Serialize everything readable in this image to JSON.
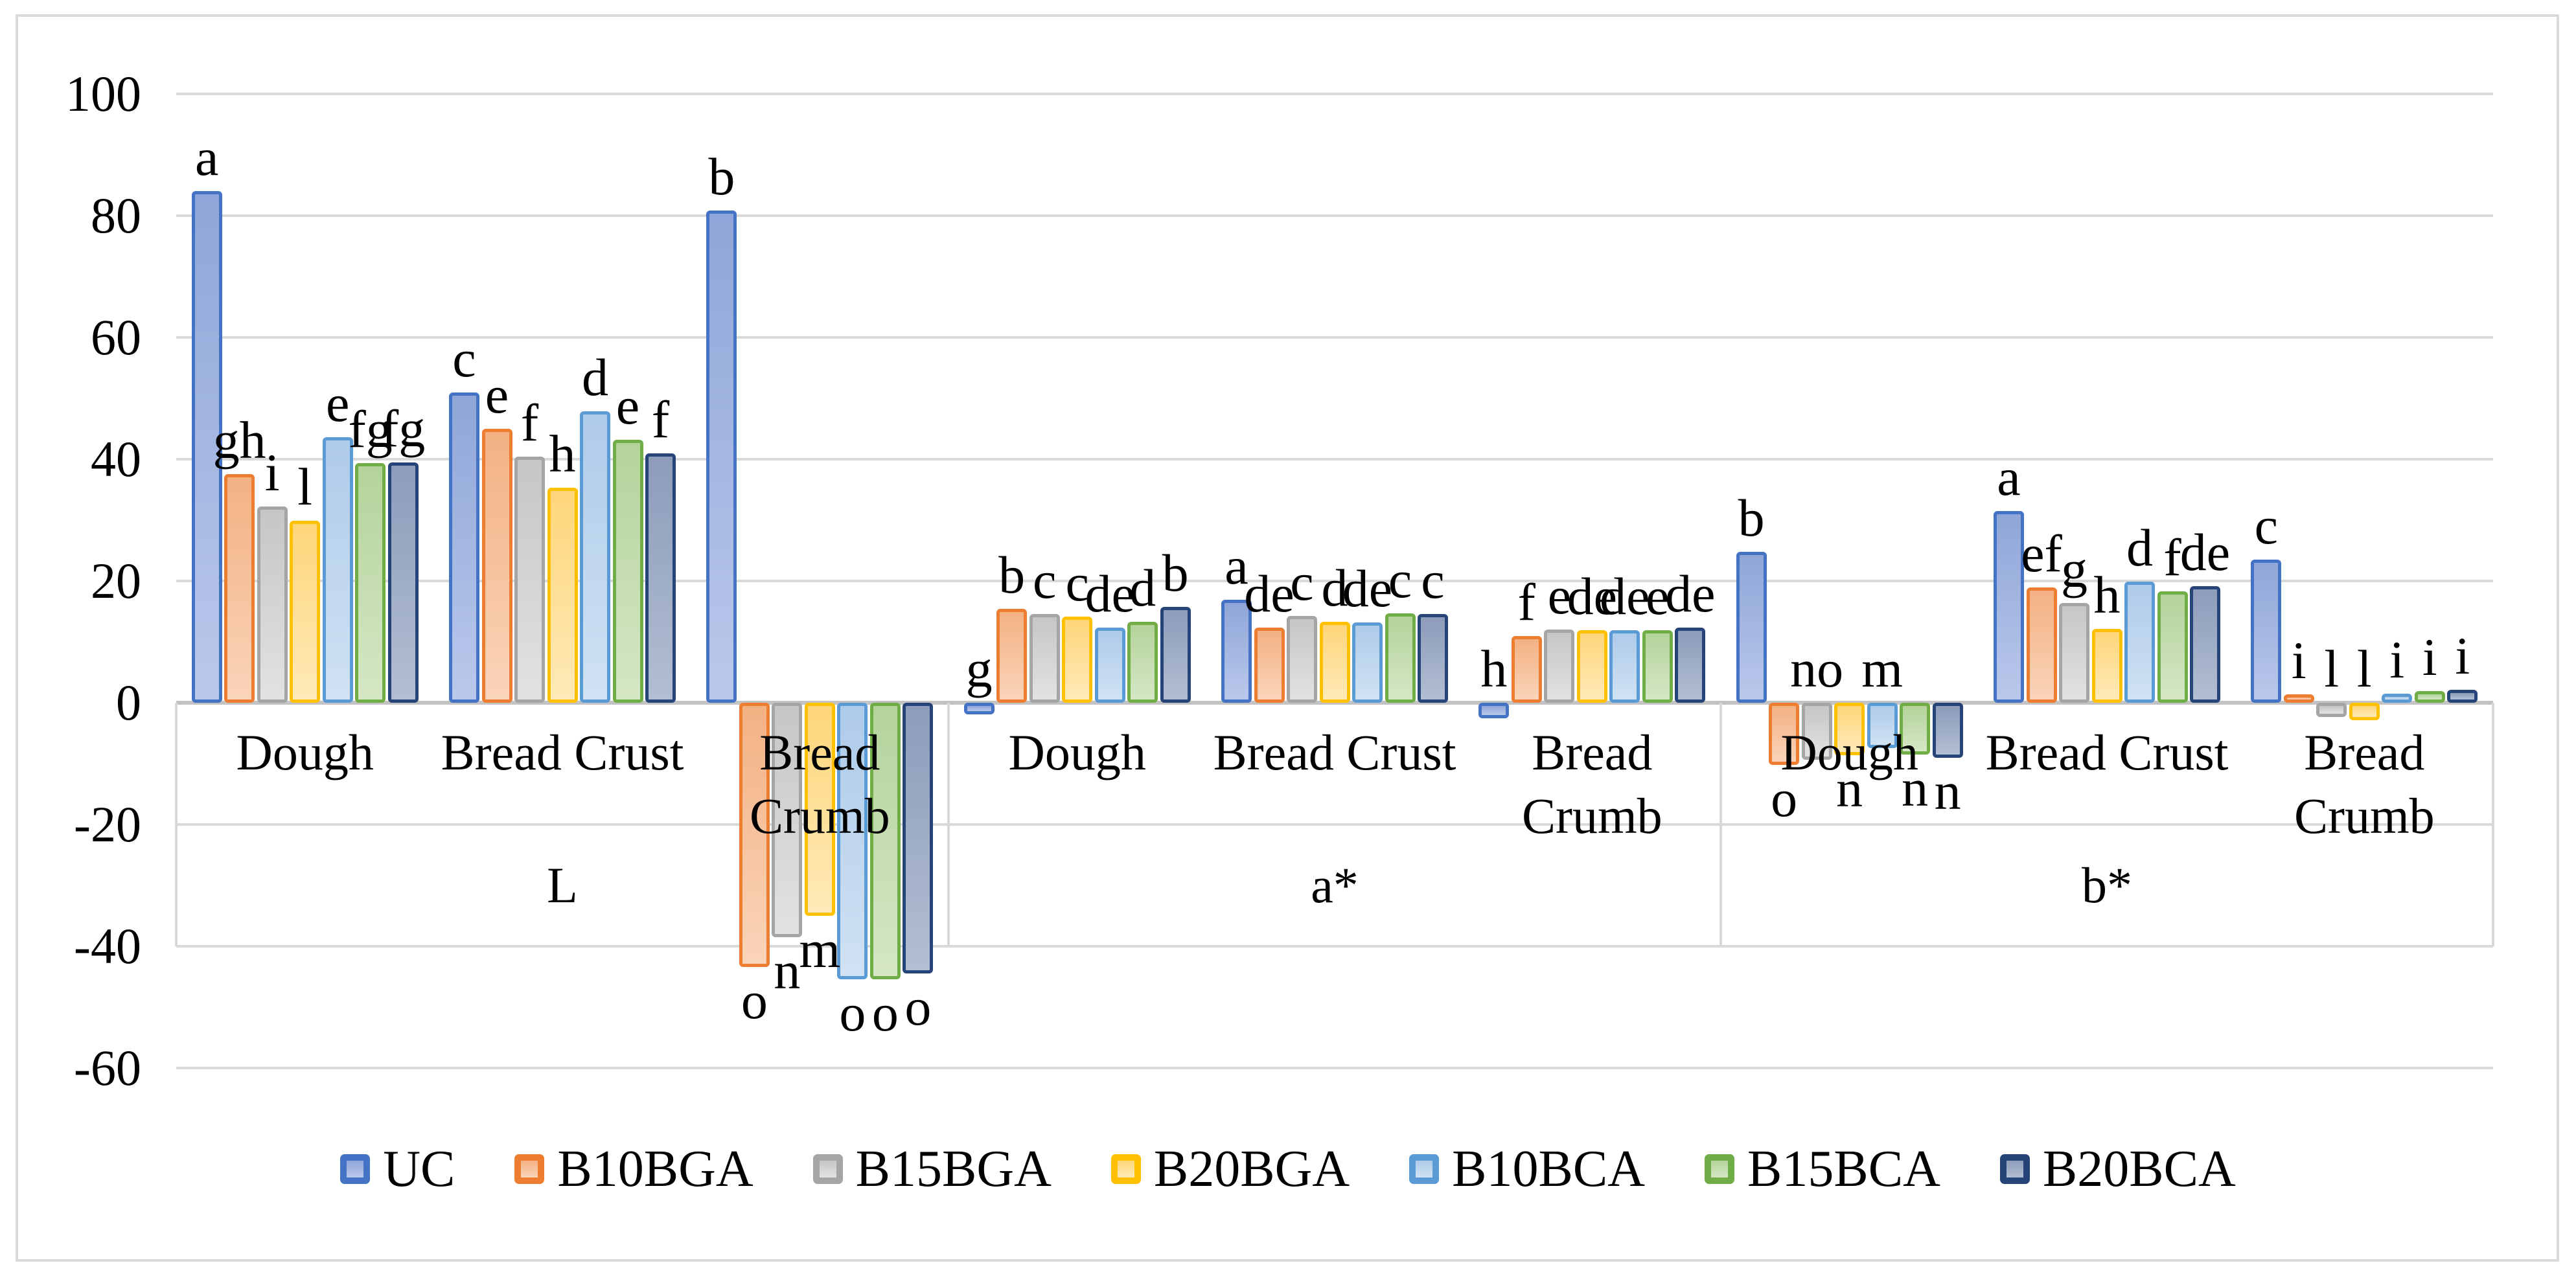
{
  "chart_data": {
    "type": "bar",
    "title": "",
    "xlabel": "",
    "ylabel": "",
    "ylim": [
      -60,
      100
    ],
    "grid": true,
    "legend_position": "bottom",
    "y_ticks": [
      100,
      80,
      60,
      40,
      20,
      0,
      -20,
      -40,
      -60
    ],
    "series": [
      {
        "name": "UC",
        "border": "#4472C4",
        "fill_top": "#8fa6d8",
        "fill_bottom": "#bac8eb"
      },
      {
        "name": "B10BGA",
        "border": "#ED7D31",
        "fill_top": "#f3b183",
        "fill_bottom": "#fad4b9"
      },
      {
        "name": "B15BGA",
        "border": "#A5A5A5",
        "fill_top": "#c6c6c6",
        "fill_bottom": "#e2e2e2"
      },
      {
        "name": "B20BGA",
        "border": "#FFC000",
        "fill_top": "#fed67a",
        "fill_bottom": "#feeab8"
      },
      {
        "name": "B10BCA",
        "border": "#5B9BD5",
        "fill_top": "#aecbe9",
        "fill_bottom": "#d0e2f3"
      },
      {
        "name": "B15BCA",
        "border": "#70AD47",
        "fill_top": "#b4d39b",
        "fill_bottom": "#d5e7c5"
      },
      {
        "name": "B20BCA",
        "border": "#264478",
        "fill_top": "#8c9cba",
        "fill_bottom": "#b2bed2"
      }
    ],
    "panels": [
      {
        "label": "L",
        "categories": [
          {
            "label": "Dough",
            "wrap": false,
            "values": [
              83.0,
              36.5,
              31.2,
              28.8,
              42.6,
              38.3,
              38.4
            ],
            "letters": [
              "a",
              "gh",
              "i",
              "l",
              "e",
              "fg",
              "fg"
            ],
            "axis_letters": []
          },
          {
            "label": "Bread Crust",
            "wrap": false,
            "values": [
              49.9,
              43.9,
              39.4,
              34.3,
              46.8,
              42.1,
              39.9
            ],
            "letters": [
              "c",
              "e",
              "f",
              "h",
              "d",
              "e",
              "f"
            ],
            "axis_letters": []
          },
          {
            "label": "Bread Crumb",
            "wrap": true,
            "label_lines": [
              "Bread",
              "Crumb"
            ],
            "values": [
              79.8,
              -42.3,
              -37.4,
              -33.9,
              -44.4,
              -44.4,
              -43.4
            ],
            "letters": [
              "b",
              "o",
              "n",
              "m",
              "o",
              "o",
              "o"
            ],
            "axis_letters": []
          }
        ]
      },
      {
        "label": "a*",
        "categories": [
          {
            "label": "Dough",
            "wrap": false,
            "values": [
              -0.8,
              14.4,
              13.5,
              13.1,
              11.3,
              12.2,
              14.7
            ],
            "letters": [
              "g",
              "b",
              "c",
              "c",
              "de",
              "d",
              "b"
            ],
            "axis_letters": [
              0
            ]
          },
          {
            "label": "Bread Crust",
            "wrap": false,
            "values": [
              15.9,
              11.3,
              13.2,
              12.2,
              12.1,
              13.6,
              13.5
            ],
            "letters": [
              "a",
              "de",
              "c",
              "d",
              "de",
              "c",
              "c"
            ],
            "axis_letters": []
          },
          {
            "label": "Bread Crumb",
            "wrap": true,
            "label_lines": [
              "Bread",
              "Crumb"
            ],
            "values": [
              -1.5,
              9.9,
              11.0,
              10.9,
              10.8,
              10.9,
              11.3
            ],
            "letters": [
              "h",
              "f",
              "e",
              "de",
              "de",
              "e",
              "de"
            ],
            "axis_letters": [
              0
            ]
          }
        ]
      },
      {
        "label": "b*",
        "categories": [
          {
            "label": "Dough",
            "wrap": false,
            "values": [
              23.7,
              -9.2,
              -8.3,
              -7.6,
              -6.4,
              -7.4,
              -8.0
            ],
            "letters": [
              "b",
              "o",
              "no",
              "n",
              "m",
              "n",
              "n"
            ],
            "axis_letters": [
              2,
              4
            ]
          },
          {
            "label": "Bread Crust",
            "wrap": false,
            "values": [
              30.4,
              17.9,
              15.3,
              11.1,
              18.8,
              17.2,
              18.1
            ],
            "letters": [
              "a",
              "ef",
              "g",
              "h",
              "d",
              "f",
              "de"
            ],
            "axis_letters": []
          },
          {
            "label": "Bread Crumb",
            "wrap": true,
            "label_lines": [
              "Bread",
              "Crumb"
            ],
            "values": [
              22.4,
              0.3,
              -1.3,
              -1.8,
              0.4,
              0.8,
              1.1
            ],
            "letters": [
              "c",
              "i",
              "l",
              "l",
              "i",
              "i",
              "i"
            ],
            "axis_letters": [
              2,
              3
            ]
          }
        ]
      }
    ],
    "legend_entries": [
      "UC",
      "B10BGA",
      "B15BGA",
      "B20BGA",
      "B10BCA",
      "B15BCA",
      "B20BCA"
    ]
  }
}
